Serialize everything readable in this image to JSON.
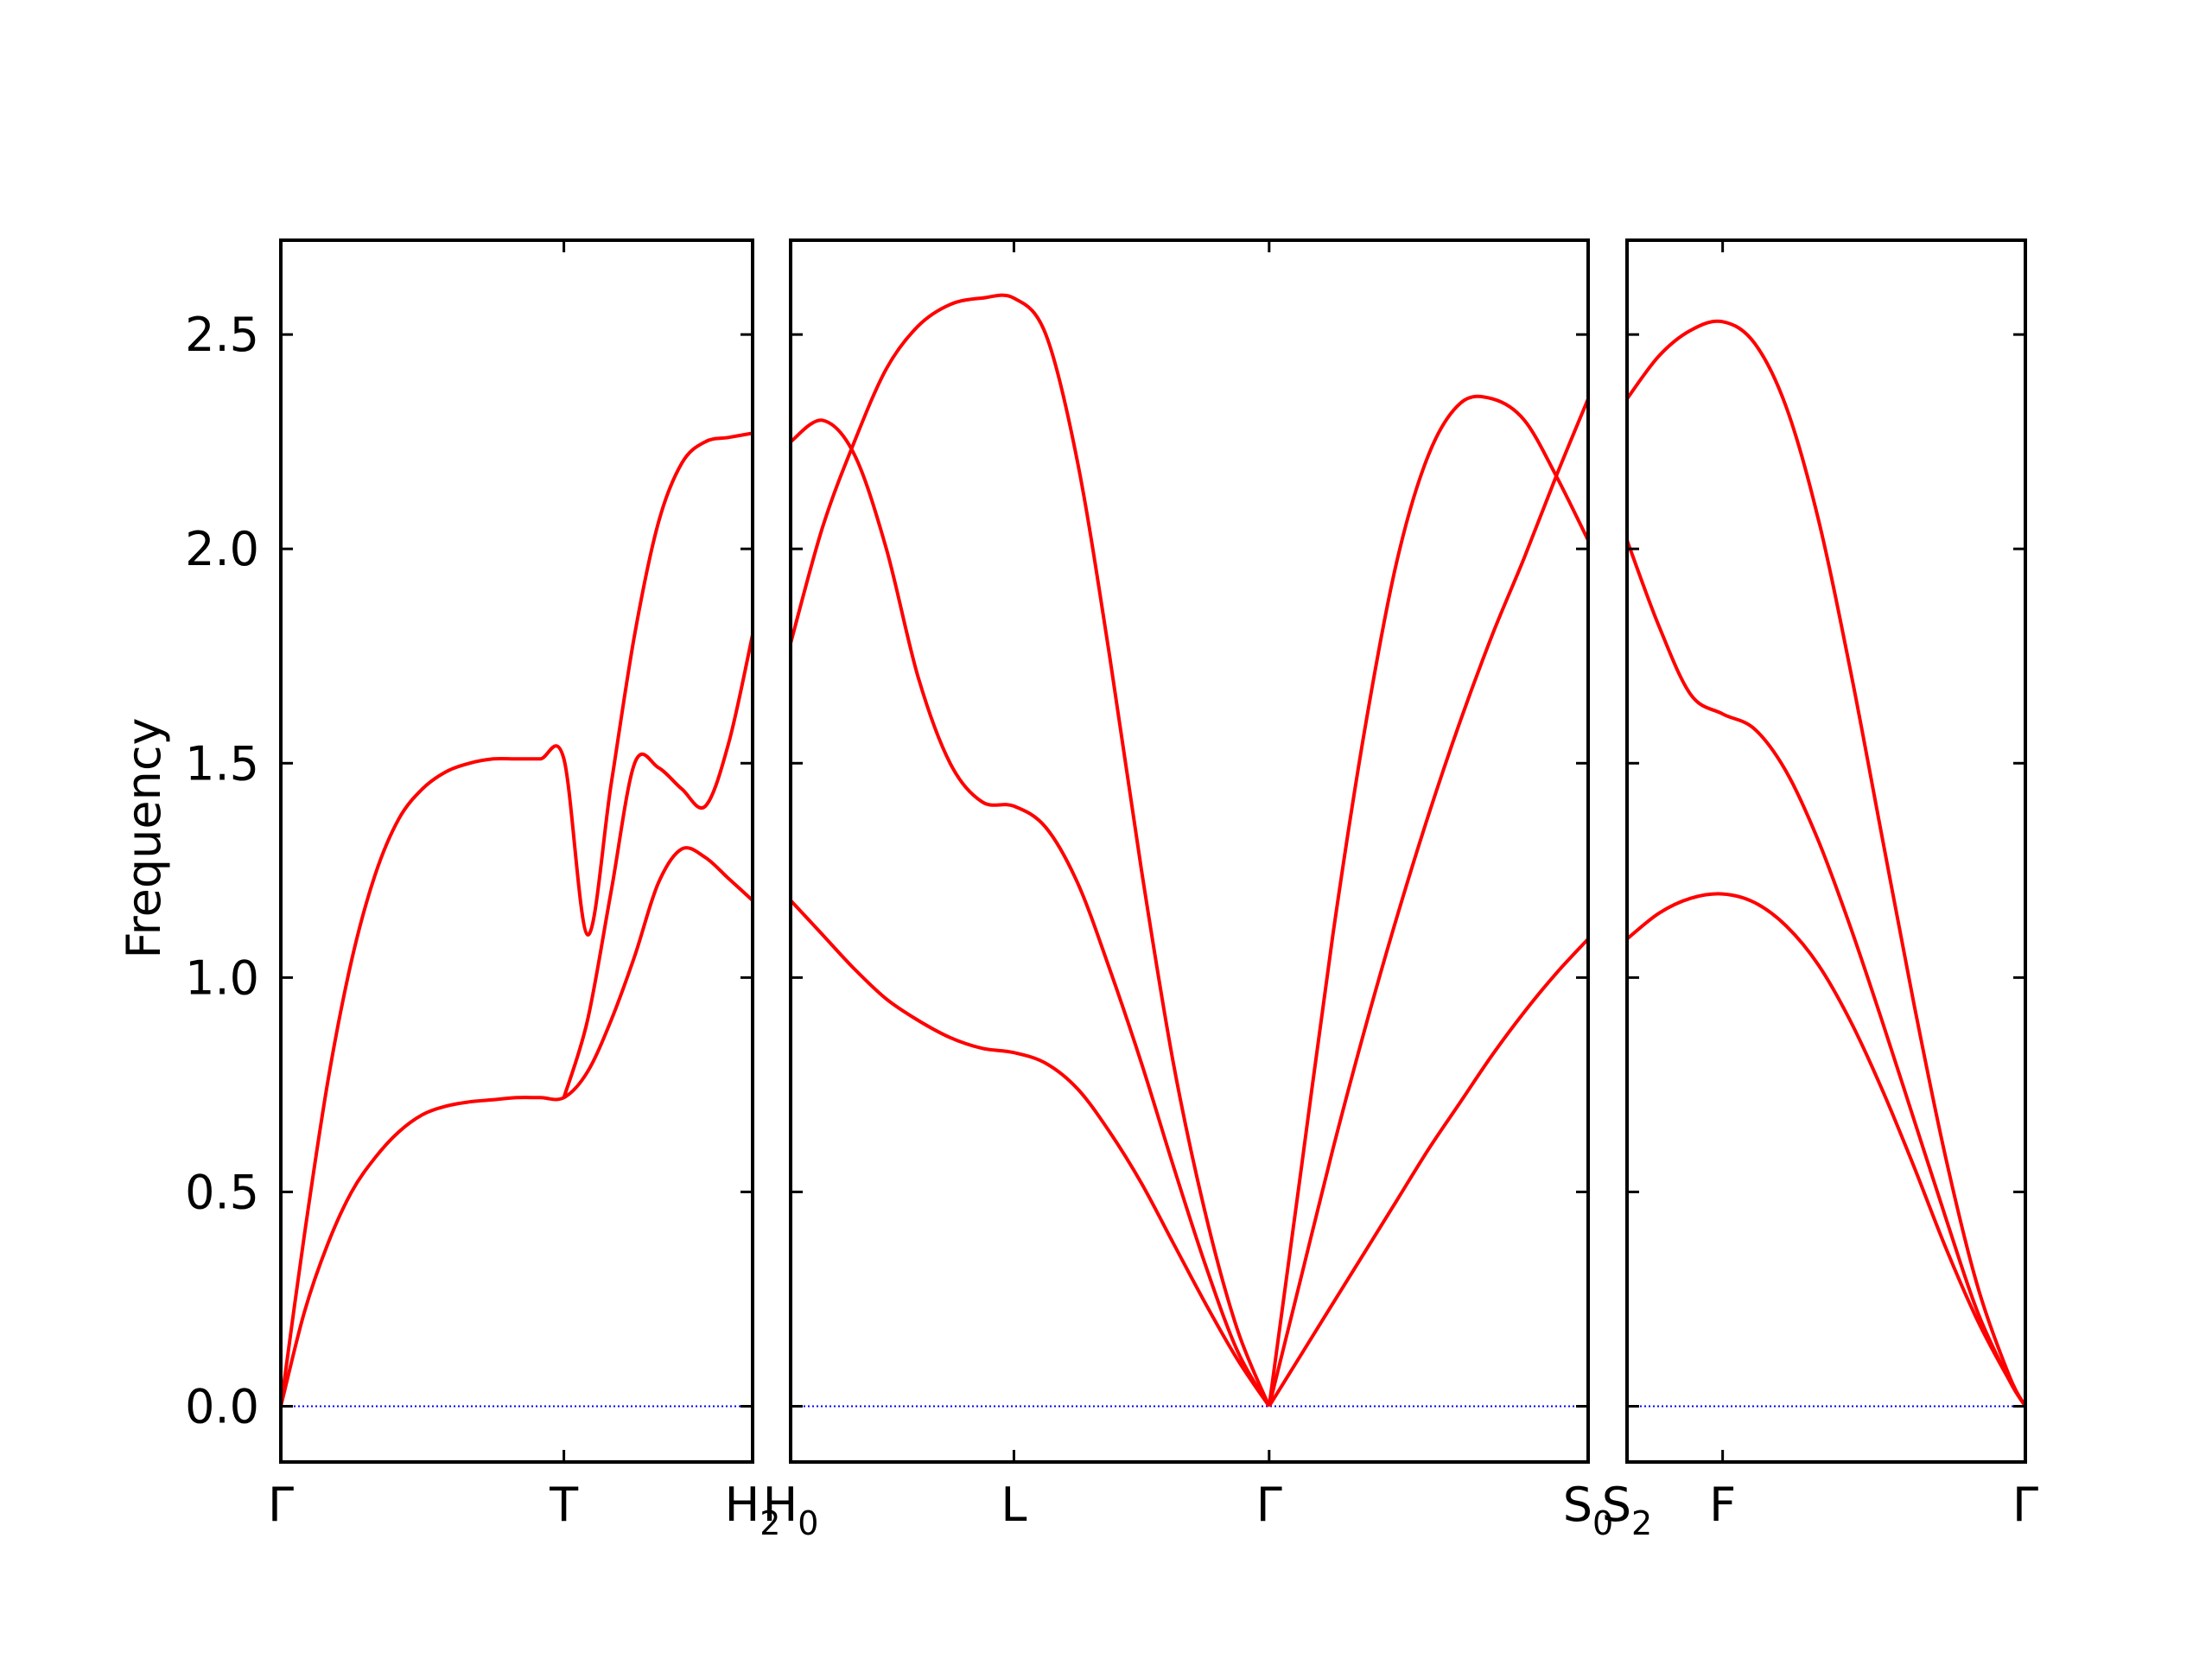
{
  "chart_data": {
    "type": "line",
    "ylabel": "Frequency",
    "ylim": [
      -0.13,
      2.72
    ],
    "yticks": [
      "0.0",
      "0.5",
      "1.0",
      "1.5",
      "2.0",
      "2.5"
    ],
    "ytick_values": [
      0.0,
      0.5,
      1.0,
      1.5,
      2.0,
      2.5
    ],
    "line_color": "#ff0000",
    "zero_line_color": "#0000ff",
    "panels": [
      {
        "id": "panel-1",
        "xticks": [
          {
            "label": "Γ",
            "pos": 0.0
          },
          {
            "label": "T",
            "pos": 0.6
          },
          {
            "label": "H",
            "sub": "2",
            "pos": 1.0
          }
        ],
        "series": [
          {
            "x": [
              0,
              0.05,
              0.1,
              0.15,
              0.2,
              0.25,
              0.3,
              0.35,
              0.4,
              0.45,
              0.5,
              0.55,
              0.6,
              0.65,
              0.7,
              0.75,
              0.8,
              0.85,
              0.9,
              0.95,
              1.0
            ],
            "y": [
              0,
              0.22,
              0.38,
              0.5,
              0.58,
              0.64,
              0.68,
              0.7,
              0.71,
              0.715,
              0.72,
              0.72,
              0.72,
              0.78,
              0.9,
              1.05,
              1.22,
              1.3,
              1.28,
              1.23,
              1.18
            ]
          },
          {
            "x": [
              0,
              0.05,
              0.1,
              0.15,
              0.2,
              0.25,
              0.3,
              0.35,
              0.4,
              0.45,
              0.5,
              0.55,
              0.6,
              0.65,
              0.7,
              0.75,
              0.8,
              0.85,
              0.9,
              0.95,
              1.0
            ],
            "y": [
              0,
              0.4,
              0.76,
              1.04,
              1.24,
              1.37,
              1.44,
              1.48,
              1.5,
              1.51,
              1.51,
              1.51,
              1.51,
              1.1,
              1.45,
              1.8,
              2.06,
              2.2,
              2.25,
              2.26,
              2.27
            ]
          },
          {
            "x": [
              0.6,
              0.65,
              0.7,
              0.75,
              0.8,
              0.85,
              0.9,
              0.95,
              1.0
            ],
            "y": [
              0.72,
              0.9,
              1.2,
              1.5,
              1.49,
              1.44,
              1.4,
              1.55,
              1.8
            ]
          }
        ]
      },
      {
        "id": "panel-2",
        "xticks": [
          {
            "label": "H",
            "sub": "0",
            "pos": 0.0
          },
          {
            "label": "L",
            "pos": 0.28
          },
          {
            "label": "Γ",
            "pos": 0.6
          },
          {
            "label": "S",
            "sub": "0",
            "pos": 1.0
          }
        ],
        "series": [
          {
            "x": [
              0,
              0.04,
              0.08,
              0.12,
              0.16,
              0.2,
              0.24,
              0.28,
              0.32,
              0.36,
              0.4,
              0.44,
              0.48,
              0.52,
              0.56,
              0.6
            ],
            "y": [
              1.18,
              1.1,
              1.02,
              0.95,
              0.9,
              0.86,
              0.835,
              0.825,
              0.8,
              0.74,
              0.64,
              0.52,
              0.38,
              0.24,
              0.11,
              0.0
            ]
          },
          {
            "x": [
              0,
              0.04,
              0.08,
              0.12,
              0.16,
              0.2,
              0.24,
              0.28,
              0.32,
              0.36,
              0.4,
              0.44,
              0.48,
              0.52,
              0.56,
              0.6
            ],
            "y": [
              2.25,
              2.3,
              2.22,
              2.0,
              1.7,
              1.5,
              1.41,
              1.4,
              1.35,
              1.22,
              1.02,
              0.8,
              0.56,
              0.33,
              0.13,
              0.0
            ]
          },
          {
            "x": [
              0,
              0.04,
              0.08,
              0.12,
              0.16,
              0.2,
              0.24,
              0.28,
              0.32,
              0.36,
              0.4,
              0.44,
              0.48,
              0.52,
              0.56,
              0.6
            ],
            "y": [
              1.78,
              2.05,
              2.25,
              2.42,
              2.52,
              2.57,
              2.585,
              2.585,
              2.5,
              2.2,
              1.75,
              1.25,
              0.8,
              0.45,
              0.18,
              0.0
            ]
          },
          {
            "x": [
              0.6,
              0.64,
              0.68,
              0.72,
              0.76,
              0.8,
              0.84,
              0.88,
              0.92,
              0.96,
              1.0
            ],
            "y": [
              0,
              0.12,
              0.24,
              0.36,
              0.48,
              0.6,
              0.71,
              0.82,
              0.92,
              1.01,
              1.09
            ]
          },
          {
            "x": [
              0.6,
              0.64,
              0.68,
              0.72,
              0.76,
              0.8,
              0.84,
              0.88,
              0.92,
              0.96,
              1.0
            ],
            "y": [
              0,
              0.3,
              0.6,
              0.88,
              1.14,
              1.38,
              1.6,
              1.8,
              1.98,
              2.17,
              2.35
            ]
          },
          {
            "x": [
              0.6,
              0.64,
              0.68,
              0.72,
              0.76,
              0.8,
              0.84,
              0.88,
              0.92,
              0.96,
              1.0
            ],
            "y": [
              0,
              0.55,
              1.1,
              1.58,
              1.97,
              2.22,
              2.34,
              2.35,
              2.3,
              2.17,
              2.02
            ]
          }
        ]
      },
      {
        "id": "panel-3",
        "xticks": [
          {
            "label": "S",
            "sub": "2",
            "pos": 0.0
          },
          {
            "label": "F",
            "pos": 0.24
          },
          {
            "label": "Γ",
            "pos": 1.0
          }
        ],
        "series": [
          {
            "x": [
              0,
              0.08,
              0.16,
              0.24,
              0.32,
              0.4,
              0.48,
              0.56,
              0.64,
              0.72,
              0.8,
              0.88,
              0.96,
              1.0
            ],
            "y": [
              1.09,
              1.15,
              1.185,
              1.195,
              1.175,
              1.12,
              1.03,
              0.9,
              0.74,
              0.56,
              0.37,
              0.2,
              0.06,
              0.0
            ]
          },
          {
            "x": [
              0,
              0.08,
              0.16,
              0.24,
              0.32,
              0.4,
              0.48,
              0.56,
              0.64,
              0.72,
              0.8,
              0.88,
              0.96,
              1.0
            ],
            "y": [
              2.02,
              1.82,
              1.66,
              1.615,
              1.58,
              1.48,
              1.32,
              1.12,
              0.9,
              0.67,
              0.44,
              0.22,
              0.06,
              0.0
            ]
          },
          {
            "x": [
              0,
              0.08,
              0.16,
              0.24,
              0.32,
              0.4,
              0.48,
              0.56,
              0.64,
              0.72,
              0.8,
              0.88,
              0.96,
              1.0
            ],
            "y": [
              2.35,
              2.45,
              2.51,
              2.53,
              2.48,
              2.33,
              2.07,
              1.72,
              1.33,
              0.94,
              0.58,
              0.28,
              0.07,
              0.0
            ]
          }
        ]
      }
    ]
  }
}
